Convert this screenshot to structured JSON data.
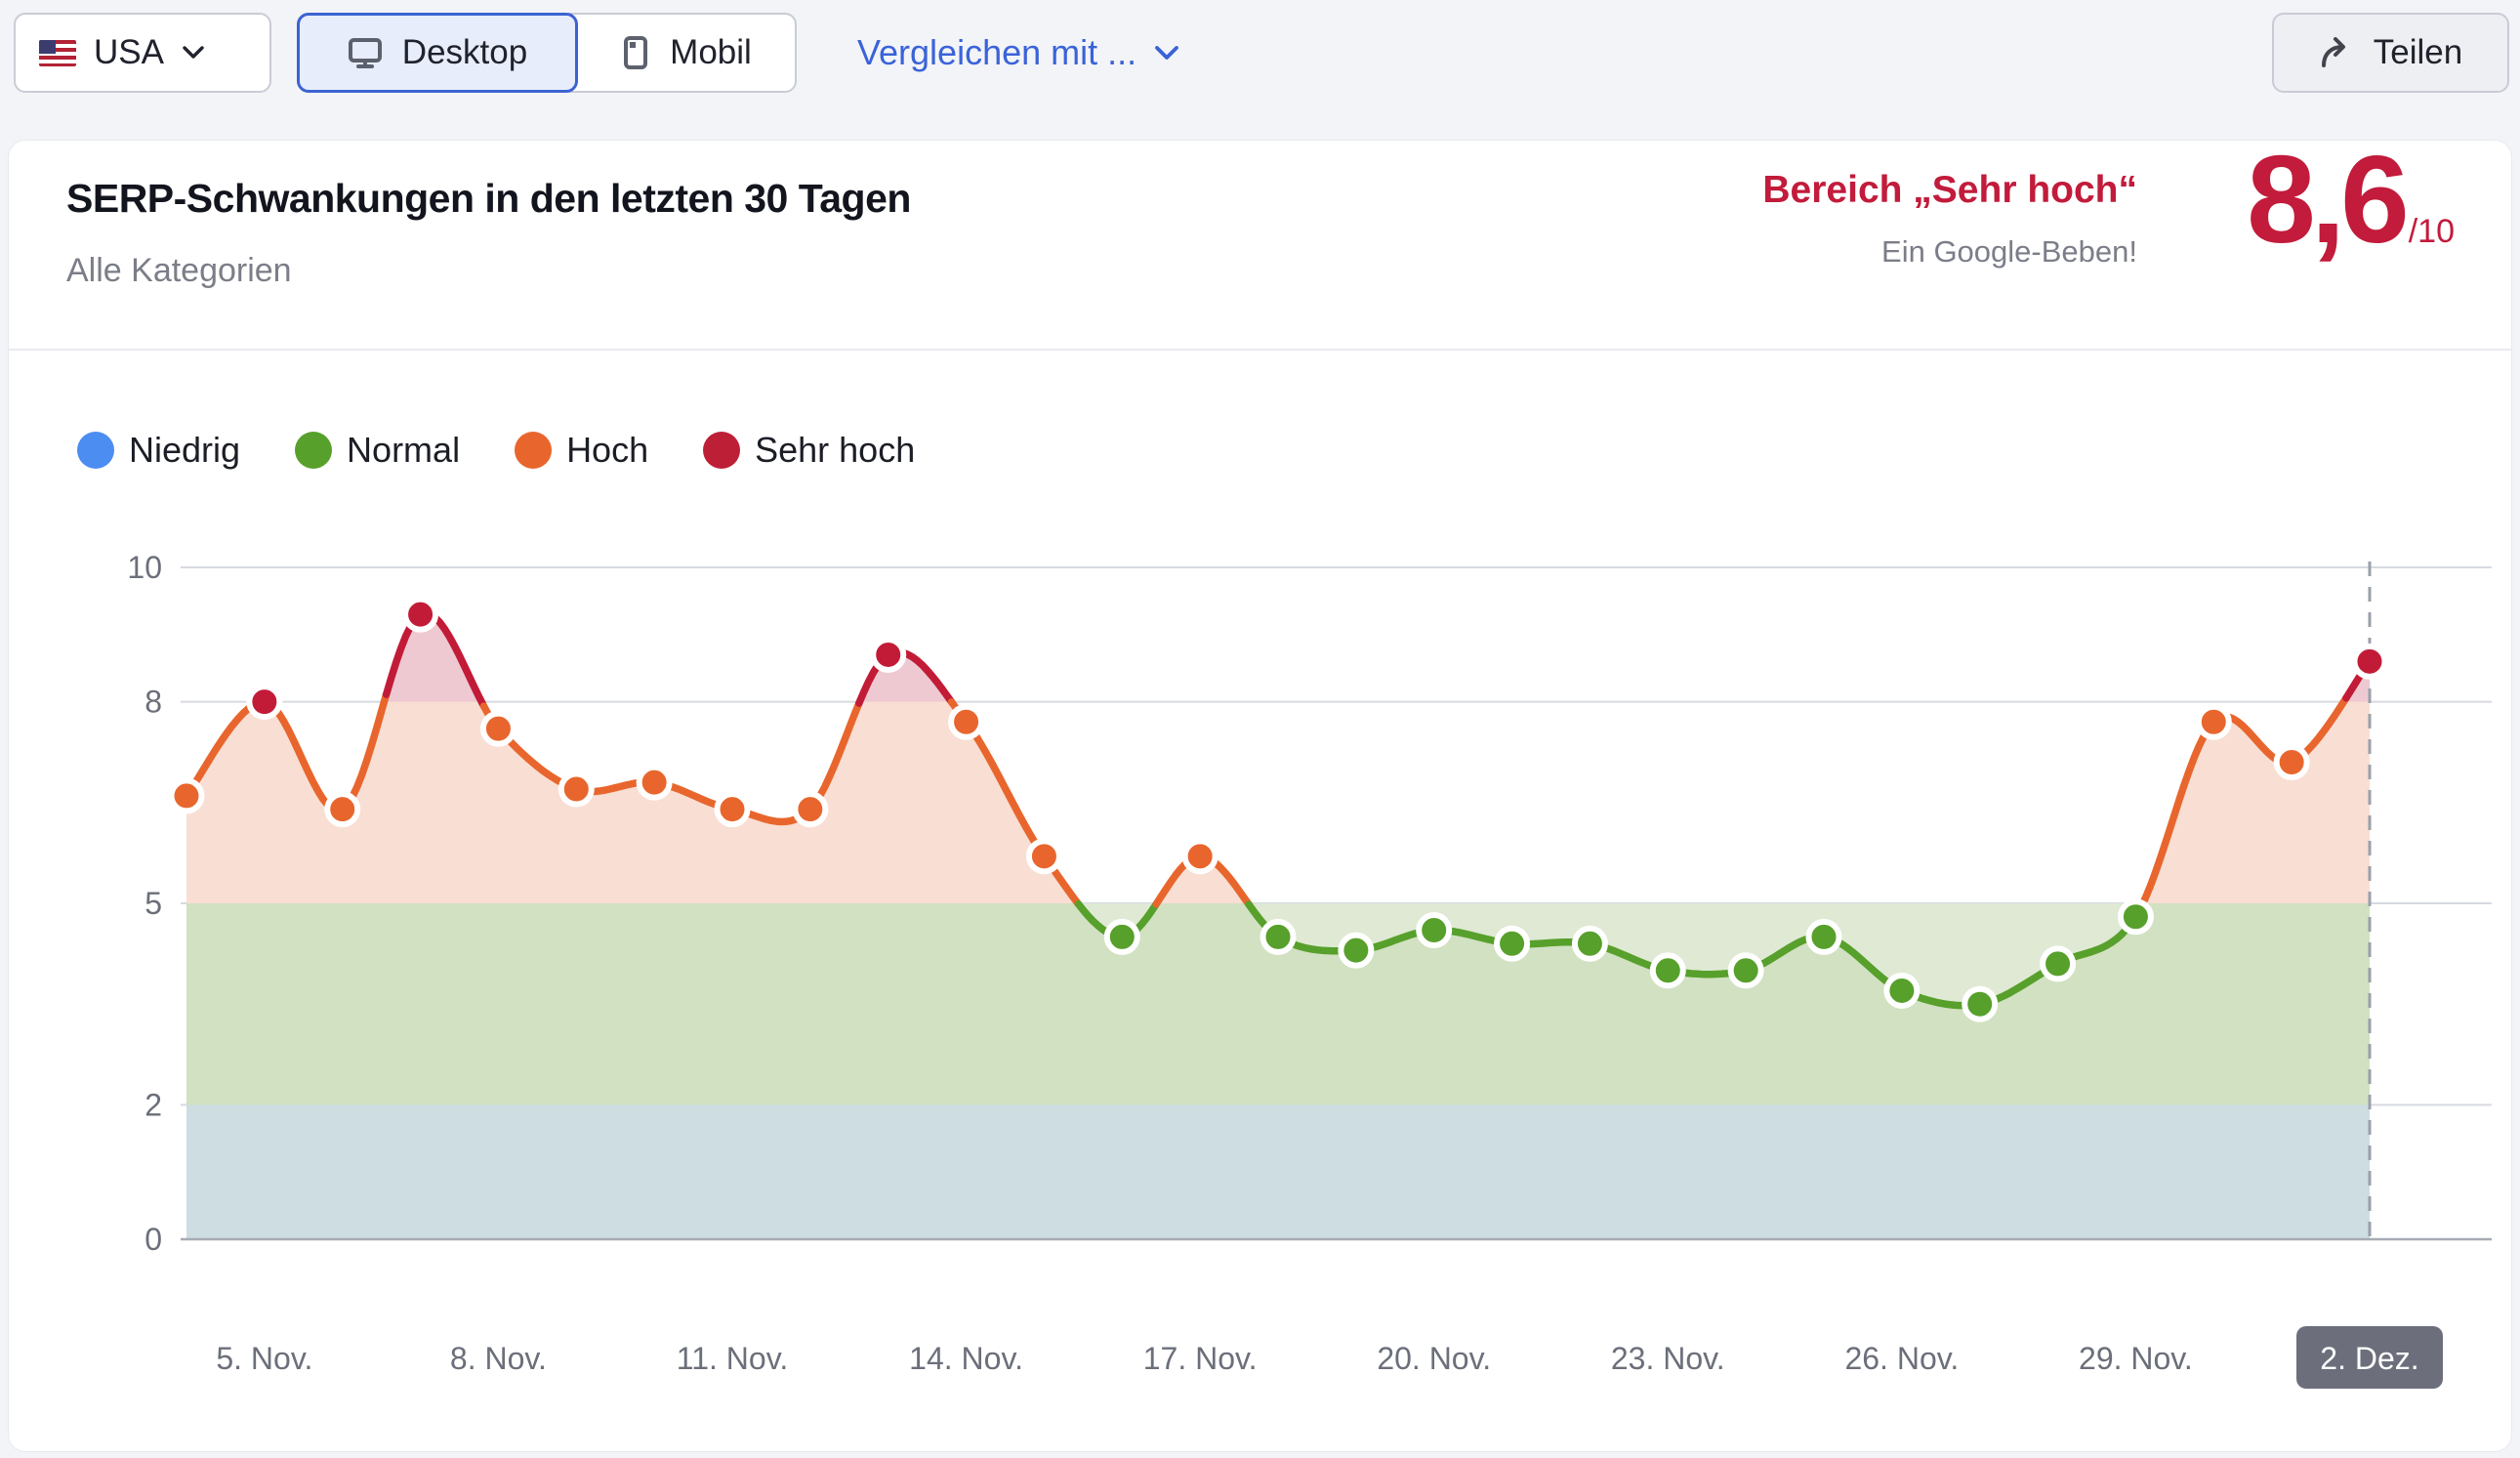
{
  "toolbar": {
    "country_label": "USA",
    "device_desktop": "Desktop",
    "device_mobile": "Mobil",
    "compare_label": "Vergleichen mit ...",
    "share_label": "Teilen"
  },
  "header": {
    "title": "SERP-Schwankungen in den letzten 30 Tagen",
    "subtitle": "Alle Kategorien",
    "score_label": "Bereich „Sehr hoch“",
    "score_sub": "Ein Google-Beben!",
    "score_value": "8,6",
    "score_max": "/10"
  },
  "legend": [
    {
      "label": "Niedrig",
      "color": "#4c8df2"
    },
    {
      "label": "Normal",
      "color": "#57a02b"
    },
    {
      "label": "Hoch",
      "color": "#e8662d"
    },
    {
      "label": "Sehr hoch",
      "color": "#bd1f36"
    }
  ],
  "chart_data": {
    "type": "line",
    "title": "SERP-Schwankungen in den letzten 30 Tagen",
    "x": [
      "4. Nov.",
      "5. Nov.",
      "6. Nov.",
      "7. Nov.",
      "8. Nov.",
      "9. Nov.",
      "10. Nov.",
      "11. Nov.",
      "12. Nov.",
      "13. Nov.",
      "14. Nov.",
      "15. Nov.",
      "16. Nov.",
      "17. Nov.",
      "18. Nov.",
      "19. Nov.",
      "20. Nov.",
      "21. Nov.",
      "22. Nov.",
      "23. Nov.",
      "24. Nov.",
      "25. Nov.",
      "26. Nov.",
      "27. Nov.",
      "28. Nov.",
      "29. Nov.",
      "30. Nov.",
      "1. Dez.",
      "2. Dez."
    ],
    "values": [
      6.6,
      8.0,
      6.4,
      9.3,
      7.6,
      6.7,
      6.8,
      6.4,
      6.4,
      8.7,
      7.7,
      5.7,
      4.5,
      5.7,
      4.5,
      4.3,
      4.6,
      4.4,
      4.4,
      4.0,
      4.0,
      4.5,
      3.7,
      3.5,
      4.1,
      4.8,
      7.7,
      7.1,
      8.6
    ],
    "ylim": [
      0,
      10
    ],
    "yticks": [
      10,
      8,
      5,
      2,
      0
    ],
    "xtick_start_index": 1,
    "xtick_every": 3,
    "last_xtick_highlighted": "2. Dez.",
    "grid": true,
    "legend_position": "top-left",
    "thresholds": {
      "niedrig_max": 2,
      "normal_max": 5,
      "hoch_max": 8
    },
    "bands": [
      {
        "from": 0,
        "to": 2,
        "label": "Niedrig",
        "fill": "#dbe5f8"
      },
      {
        "from": 2,
        "to": 5,
        "label": "Normal",
        "fill": "#dfe9d4"
      }
    ],
    "colors": {
      "niedrig": "#4c8df2",
      "normal": "#57a02b",
      "hoch": "#e8662d",
      "sehr_hoch": "#c21b38",
      "area_hoch_fill": "#f9ded3",
      "area_sehr_hoch_fill": "#eec9d2",
      "area_normal_overlay": "rgba(87,160,43,0.10)",
      "gridline": "#d6dae1",
      "zero_line": "#a7abb5",
      "dashed_marker": "#9aa0aa",
      "axis_text": "#6b6f7a",
      "xtick_box_bg": "#6c6f7b",
      "xtick_box_text": "#ffffff"
    }
  }
}
